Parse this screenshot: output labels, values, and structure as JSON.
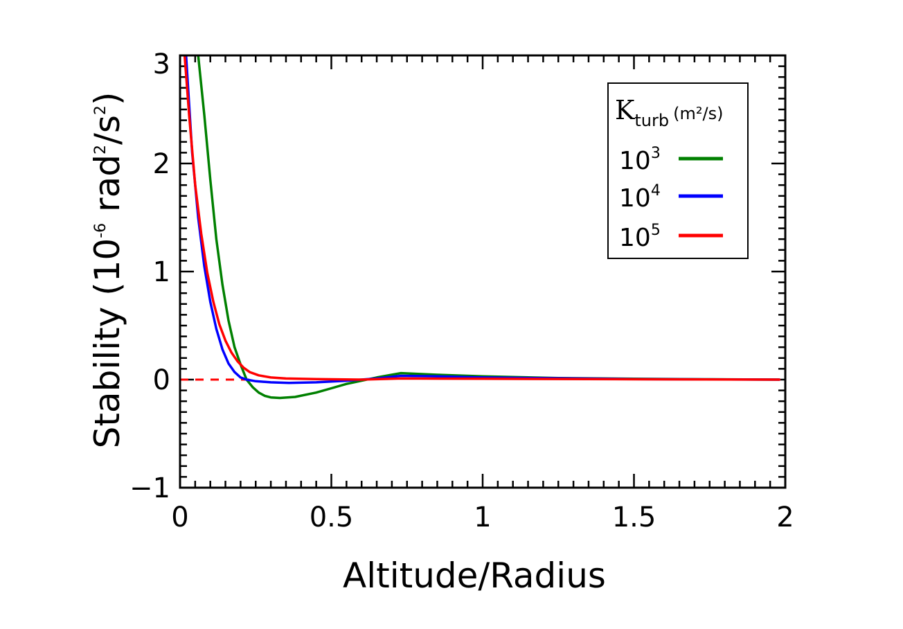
{
  "chart_data": {
    "type": "line",
    "title": "",
    "xlabel": "Altitude/Radius",
    "ylabel": {
      "prefix": "Stability  (10",
      "exp": "-6",
      "mid": " rad",
      "exp2": "2",
      "mid2": "/s",
      "exp3": "2",
      "suffix": ")"
    },
    "xlim": [
      0,
      2
    ],
    "ylim": [
      -1,
      3
    ],
    "xticks": [
      0,
      0.5,
      1,
      1.5,
      2
    ],
    "xtick_labels": [
      "0",
      "0.5",
      "1",
      "1.5",
      "2"
    ],
    "yticks": [
      -1,
      0,
      1,
      2,
      3
    ],
    "ytick_labels": [
      "−1",
      "0",
      "1",
      "2",
      "3"
    ],
    "grid": false,
    "legend": {
      "placement": "top-right",
      "title_main": "K",
      "title_sub": "turb",
      "title_units": "(m²/s)",
      "entries": [
        {
          "base": "10",
          "exp": "3",
          "color": "#008000"
        },
        {
          "base": "10",
          "exp": "4",
          "color": "#0000ff"
        },
        {
          "base": "10",
          "exp": "5",
          "color": "#ff0000"
        }
      ]
    },
    "reference_line": {
      "y": 0,
      "x": [
        0,
        0.25
      ],
      "color": "#ff0000",
      "style": "dashed"
    },
    "series": [
      {
        "name": "10^3",
        "color": "#008000",
        "points": [
          [
            0.06,
            3.0
          ],
          [
            0.08,
            2.45
          ],
          [
            0.1,
            1.85
          ],
          [
            0.12,
            1.3
          ],
          [
            0.14,
            0.88
          ],
          [
            0.16,
            0.55
          ],
          [
            0.18,
            0.3
          ],
          [
            0.2,
            0.14
          ],
          [
            0.22,
            0.0
          ],
          [
            0.24,
            -0.07
          ],
          [
            0.26,
            -0.12
          ],
          [
            0.28,
            -0.15
          ],
          [
            0.3,
            -0.165
          ],
          [
            0.33,
            -0.17
          ],
          [
            0.38,
            -0.16
          ],
          [
            0.45,
            -0.12
          ],
          [
            0.5,
            -0.08
          ],
          [
            0.55,
            -0.04
          ],
          [
            0.6,
            -0.01
          ],
          [
            0.65,
            0.02
          ],
          [
            0.73,
            0.06
          ],
          [
            0.85,
            0.045
          ],
          [
            1.0,
            0.03
          ],
          [
            1.25,
            0.015
          ],
          [
            1.5,
            0.008
          ],
          [
            1.75,
            0.003
          ],
          [
            1.98,
            0.0
          ]
        ]
      },
      {
        "name": "10^4",
        "color": "#0000ff",
        "points": [
          [
            0.02,
            3.0
          ],
          [
            0.04,
            2.1
          ],
          [
            0.06,
            1.5
          ],
          [
            0.08,
            1.05
          ],
          [
            0.1,
            0.72
          ],
          [
            0.12,
            0.47
          ],
          [
            0.14,
            0.28
          ],
          [
            0.16,
            0.15
          ],
          [
            0.18,
            0.07
          ],
          [
            0.2,
            0.02
          ],
          [
            0.22,
            0.0
          ],
          [
            0.25,
            -0.015
          ],
          [
            0.3,
            -0.025
          ],
          [
            0.36,
            -0.03
          ],
          [
            0.45,
            -0.025
          ],
          [
            0.55,
            -0.01
          ],
          [
            0.65,
            0.01
          ],
          [
            0.73,
            0.035
          ],
          [
            0.85,
            0.03
          ],
          [
            1.0,
            0.02
          ],
          [
            1.5,
            0.005
          ],
          [
            1.98,
            0.0
          ]
        ]
      },
      {
        "name": "10^5",
        "color": "#ff0000",
        "points": [
          [
            0.015,
            3.0
          ],
          [
            0.03,
            2.45
          ],
          [
            0.05,
            1.8
          ],
          [
            0.07,
            1.35
          ],
          [
            0.09,
            0.99
          ],
          [
            0.11,
            0.72
          ],
          [
            0.13,
            0.51
          ],
          [
            0.15,
            0.36
          ],
          [
            0.17,
            0.25
          ],
          [
            0.19,
            0.17
          ],
          [
            0.21,
            0.11
          ],
          [
            0.23,
            0.07
          ],
          [
            0.26,
            0.04
          ],
          [
            0.3,
            0.02
          ],
          [
            0.35,
            0.01
          ],
          [
            0.45,
            0.005
          ],
          [
            0.6,
            0.0
          ],
          [
            0.73,
            0.01
          ],
          [
            1.0,
            0.008
          ],
          [
            1.5,
            0.003
          ],
          [
            1.98,
            0.0
          ]
        ]
      }
    ]
  }
}
